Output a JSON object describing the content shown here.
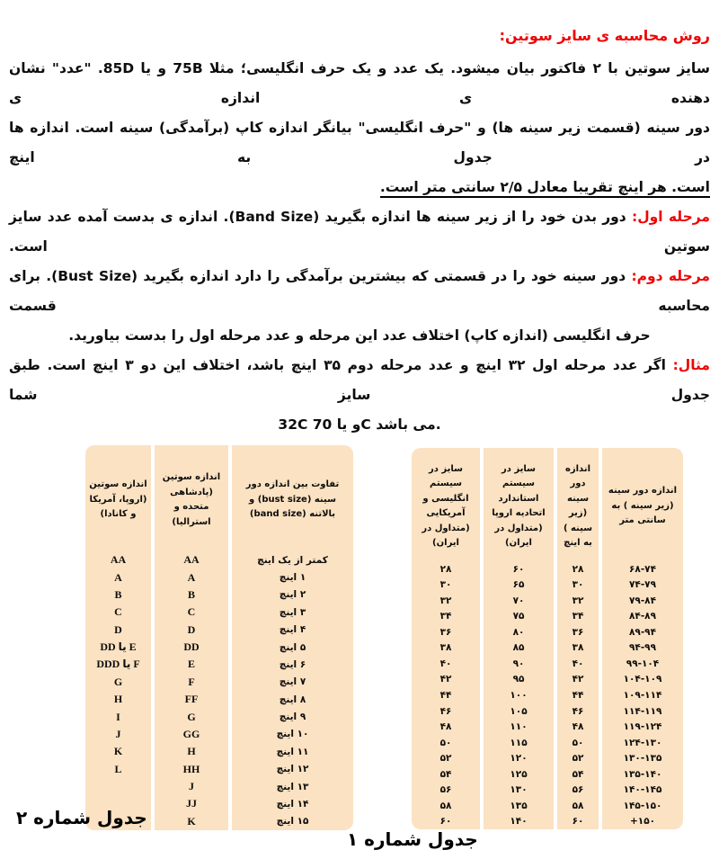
{
  "colors": {
    "accent_red": "#ee0404",
    "table_bg": "#fbe2c2"
  },
  "document": {
    "heading": "روش محاسبه ی سایز سوتین:",
    "intro_lines": [
      "سایز سوتین با ۲ فاکتور بیان میشود. یک عدد و یک حرف انگلیسی؛ مثلا 75B و یا 85D. \"عدد\" نشان دهنده ی اندازه ی",
      "دور سینه (قسمت زیر سینه ها) و \"حرف انگلیسی\" بیانگر اندازه کاپ (برآمدگی) سینه است. اندازه ها در جدول به اینچ",
      "است. هر اینچ تقریبا معادل ۲/۵ سانتی متر است."
    ],
    "steps": [
      {
        "label": "مرحله اول:",
        "lines": [
          "دور بدن خود را از زیر سینه ها اندازه بگیرید (Band Size). اندازه ی بدست آمده عدد سایز سوتین است."
        ]
      },
      {
        "label": "مرحله دوم:",
        "lines": [
          "دور سینه خود را در قسمتی که بیشترین برآمدگی را دارد اندازه بگیرید (Bust Size). برای محاسبه قسمت",
          "حرف انگلیسی (اندازه کاپ) اختلاف عدد این مرحله و عدد مرحله اول را بدست بیاورید."
        ]
      },
      {
        "label": "مثال:",
        "lines": [
          "اگر عدد مرحله اول ۳۲ اینچ و عدد مرحله دوم ۳۵ اینچ باشد، اختلاف این دو ۳ اینچ است. طبق جدول سایز شما",
          "32C و یا 70C می باشد."
        ]
      }
    ]
  },
  "tables": {
    "table1": {
      "caption": "جدول شماره ۱",
      "columns": [
        {
          "header": "اندازه دور سینه (زیر سینه ) به سانتی متر",
          "cells": [
            "۶۸-۷۴",
            "۷۴-۷۹",
            "۷۹-۸۴",
            "۸۴-۸۹",
            "۸۹-۹۴",
            "۹۴-۹۹",
            "۹۹-۱۰۴",
            "۱۰۴-۱۰۹",
            "۱۰۹-۱۱۴",
            "۱۱۴-۱۱۹",
            "۱۱۹-۱۲۴",
            "۱۲۴-۱۳۰",
            "۱۳۰-۱۳۵",
            "۱۳۵-۱۴۰",
            "۱۴۰-۱۴۵",
            "۱۴۵-۱۵۰",
            "۱۵۰+"
          ]
        },
        {
          "header": "اندازه دور سینه (زیر سینه ) به اینچ",
          "cells": [
            "۲۸",
            "۳۰",
            "۳۲",
            "۳۴",
            "۳۶",
            "۳۸",
            "۴۰",
            "۴۲",
            "۴۴",
            "۴۶",
            "۴۸",
            "۵۰",
            "۵۲",
            "۵۴",
            "۵۶",
            "۵۸",
            "۶۰"
          ]
        },
        {
          "header": "سایز در سیستم استاندارد اتحادیه اروپا (متداول در ایران)",
          "cells": [
            "۶۰",
            "۶۵",
            "۷۰",
            "۷۵",
            "۸۰",
            "۸۵",
            "۹۰",
            "۹۵",
            "۱۰۰",
            "۱۰۵",
            "۱۱۰",
            "۱۱۵",
            "۱۲۰",
            "۱۲۵",
            "۱۳۰",
            "۱۳۵",
            "۱۴۰"
          ]
        },
        {
          "header": "سایز در سیستم انگلیسی و آمریکایی (متداول در ایران)",
          "cells": [
            "۲۸",
            "۳۰",
            "۳۲",
            "۳۴",
            "۳۶",
            "۳۸",
            "۴۰",
            "۴۲",
            "۴۴",
            "۴۶",
            "۴۸",
            "۵۰",
            "۵۲",
            "۵۴",
            "۵۶",
            "۵۸",
            "۶۰"
          ]
        }
      ]
    },
    "table2": {
      "caption": "جدول شماره ۲",
      "columns": [
        {
          "header": "تفاوت بین اندازه دور سینه (bust size) و بالاتنه (band size)",
          "cells": [
            "کمتر از یک اینچ",
            "۱ اینچ",
            "۲ اینچ",
            "۳ اینچ",
            "۴ اینچ",
            "۵ اینچ",
            "۶ اینچ",
            "۷ اینچ",
            "۸ اینچ",
            "۹ اینچ",
            "۱۰ اینچ",
            "۱۱ اینچ",
            "۱۲ اینچ",
            "۱۳ اینچ",
            "۱۴ اینچ",
            "۱۵ اینچ"
          ]
        },
        {
          "header": "اندازه سوتین (پادشاهی متحده و استرالیا)",
          "cells": [
            "AA",
            "A",
            "B",
            "C",
            "D",
            "DD",
            "E",
            "F",
            "FF",
            "G",
            "GG",
            "H",
            "HH",
            "J",
            "JJ",
            "K"
          ]
        },
        {
          "header": "اندازه سوتین (اروپا، آمریکا و کانادا)",
          "cells": [
            "AA",
            "A",
            "B",
            "C",
            "D",
            "E یا DD",
            "F یا DDD",
            "G",
            "H",
            "I",
            "J",
            "K",
            "L",
            "",
            "",
            ""
          ]
        }
      ]
    }
  }
}
